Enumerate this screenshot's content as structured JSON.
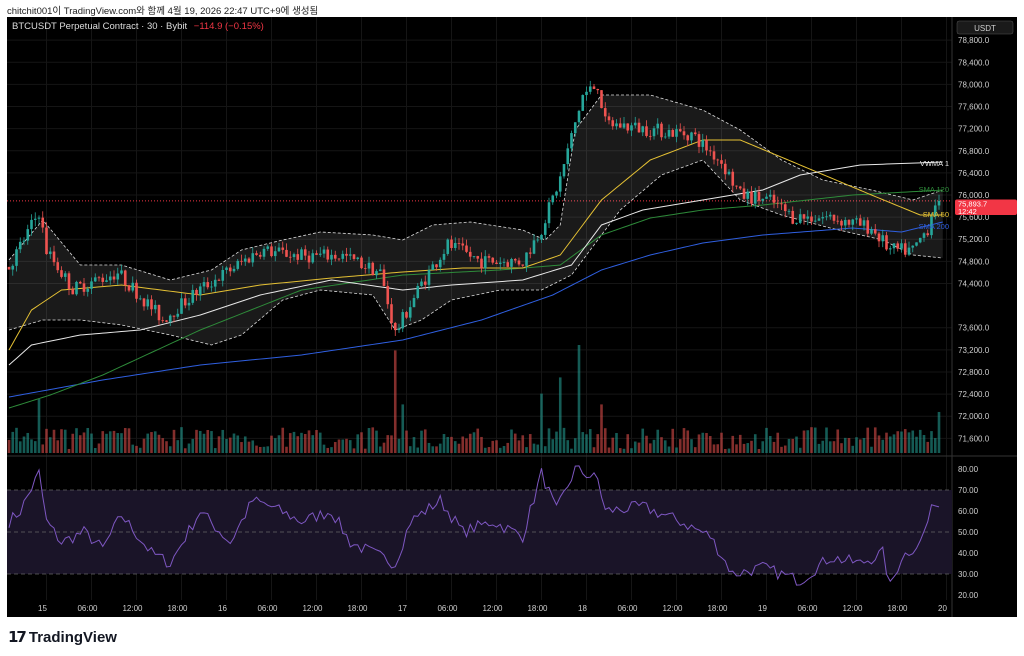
{
  "caption": "chitchit001이 TradingView.com와 함께 4월 19, 2026 22:47 UTC+9에 생성됨",
  "header": {
    "symbol": "BTCUSDT Perpetual Contract · 30 · Bybit",
    "change": "−114.9 (−0.15%)"
  },
  "currency_label": "USDT",
  "last_price": {
    "value": "75,893.7",
    "countdown": "12:42",
    "price": 75893.7
  },
  "legend": {
    "vwma": "VWMA 1",
    "sma120": "SMA 120",
    "sma50": "SMA 50",
    "sma200": "SMA 200"
  },
  "colors": {
    "up": "#26a69a",
    "down": "#ef5350",
    "sma50": "#e5c134",
    "sma120": "#2e8b3a",
    "sma200": "#2f5fe0",
    "vwma": "#e8e8e8",
    "rsi": "#7e57c2",
    "last": "#f23645"
  },
  "footer": {
    "brand": "TradingView"
  },
  "chart_data": {
    "type": "candlestick",
    "interval": "30",
    "price_axis": {
      "ticks": [
        "78,800.0",
        "78,400.0",
        "78,000.0",
        "77,600.0",
        "77,200.0",
        "76,800.0",
        "76,400.0",
        "76,000.0",
        "75,600.0",
        "75,200.0",
        "74,800.0",
        "74,400.0",
        "73,600.0",
        "73,200.0",
        "72,800.0",
        "72,400.0",
        "72,000.0",
        "71,600.0"
      ],
      "values": [
        78800,
        78400,
        78000,
        77600,
        77200,
        76800,
        76400,
        76000,
        75600,
        75200,
        74800,
        74400,
        73600,
        73200,
        72800,
        72400,
        72000,
        71600
      ]
    },
    "rsi_axis": {
      "ticks": [
        "80.00",
        "70.00",
        "60.00",
        "50.00",
        "40.00",
        "30.00",
        "20.00"
      ],
      "values": [
        80,
        70,
        60,
        50,
        40,
        30,
        20
      ]
    },
    "time_axis": {
      "labels": [
        "15",
        "06:00",
        "12:00",
        "18:00",
        "16",
        "06:00",
        "12:00",
        "18:00",
        "17",
        "06:00",
        "12:00",
        "18:00",
        "18",
        "06:00",
        "12:00",
        "18:00",
        "19",
        "06:00",
        "12:00",
        "18:00",
        "20"
      ],
      "candle_index": [
        10,
        22,
        34,
        46,
        58,
        70,
        82,
        94,
        106,
        118,
        130,
        142,
        154,
        166,
        178,
        190,
        202,
        214,
        226,
        238,
        250
      ]
    },
    "price_path": [
      [
        0,
        74700
      ],
      [
        8,
        75700
      ],
      [
        10,
        75000
      ],
      [
        17,
        74300
      ],
      [
        29,
        74600
      ],
      [
        41,
        73750
      ],
      [
        51,
        74300
      ],
      [
        67,
        75000
      ],
      [
        78,
        74900
      ],
      [
        89,
        74900
      ],
      [
        99,
        74600
      ],
      [
        103,
        73500
      ],
      [
        110,
        74400
      ],
      [
        117,
        75100
      ],
      [
        126,
        74800
      ],
      [
        137,
        74800
      ],
      [
        142,
        75400
      ],
      [
        147,
        76300
      ],
      [
        153,
        77800
      ],
      [
        157,
        78000
      ],
      [
        159,
        77300
      ],
      [
        169,
        77200
      ],
      [
        182,
        77100
      ],
      [
        190,
        76600
      ],
      [
        195,
        76000
      ],
      [
        203,
        75900
      ],
      [
        209,
        75600
      ],
      [
        219,
        75600
      ],
      [
        230,
        75400
      ],
      [
        235,
        75000
      ],
      [
        241,
        75000
      ],
      [
        245,
        75400
      ],
      [
        247,
        75893.7
      ]
    ],
    "sma200": [
      [
        0,
        72347
      ],
      [
        25,
        72655
      ],
      [
        51,
        72926
      ],
      [
        78,
        73107
      ],
      [
        105,
        73378
      ],
      [
        126,
        73740
      ],
      [
        145,
        74192
      ],
      [
        158,
        74644
      ],
      [
        171,
        74915
      ],
      [
        185,
        75132
      ],
      [
        201,
        75277
      ],
      [
        225,
        75403
      ],
      [
        238,
        75331
      ],
      [
        249,
        75512
      ]
    ],
    "sma120": [
      [
        0,
        72148
      ],
      [
        11,
        72383
      ],
      [
        25,
        72745
      ],
      [
        51,
        73559
      ],
      [
        78,
        74282
      ],
      [
        105,
        74553
      ],
      [
        131,
        74644
      ],
      [
        147,
        74734
      ],
      [
        158,
        75277
      ],
      [
        171,
        75584
      ],
      [
        185,
        75729
      ],
      [
        201,
        75819
      ],
      [
        225,
        76000
      ],
      [
        249,
        76090
      ]
    ],
    "sma50": [
      [
        0,
        73197
      ],
      [
        6,
        73920
      ],
      [
        14,
        74282
      ],
      [
        30,
        74372
      ],
      [
        51,
        74192
      ],
      [
        67,
        74372
      ],
      [
        86,
        74499
      ],
      [
        105,
        74608
      ],
      [
        121,
        74680
      ],
      [
        137,
        74680
      ],
      [
        147,
        74915
      ],
      [
        158,
        75910
      ],
      [
        171,
        76633
      ],
      [
        185,
        76995
      ],
      [
        195,
        76995
      ],
      [
        211,
        76542
      ],
      [
        230,
        76000
      ],
      [
        243,
        75638
      ],
      [
        249,
        75638
      ]
    ],
    "vwma": [
      [
        0,
        72926
      ],
      [
        6,
        73288
      ],
      [
        19,
        73468
      ],
      [
        35,
        73559
      ],
      [
        51,
        73830
      ],
      [
        67,
        74192
      ],
      [
        86,
        74463
      ],
      [
        105,
        74282
      ],
      [
        118,
        74372
      ],
      [
        137,
        74463
      ],
      [
        150,
        74734
      ],
      [
        158,
        75458
      ],
      [
        169,
        75729
      ],
      [
        185,
        75910
      ],
      [
        201,
        76090
      ],
      [
        211,
        76362
      ],
      [
        227,
        76542
      ],
      [
        249,
        76597
      ]
    ],
    "bb_upper": [
      [
        0,
        74825
      ],
      [
        9,
        75548
      ],
      [
        19,
        74734
      ],
      [
        30,
        74734
      ],
      [
        43,
        74463
      ],
      [
        54,
        74644
      ],
      [
        62,
        75006
      ],
      [
        73,
        75186
      ],
      [
        83,
        75331
      ],
      [
        97,
        75277
      ],
      [
        105,
        75186
      ],
      [
        113,
        75458
      ],
      [
        123,
        75512
      ],
      [
        137,
        75367
      ],
      [
        143,
        75186
      ],
      [
        147,
        75458
      ],
      [
        151,
        77175
      ],
      [
        158,
        77808
      ],
      [
        171,
        77808
      ],
      [
        185,
        77537
      ],
      [
        195,
        77175
      ],
      [
        206,
        76633
      ],
      [
        217,
        76271
      ],
      [
        230,
        76090
      ],
      [
        241,
        75910
      ],
      [
        249,
        76090
      ]
    ],
    "bb_lower": [
      [
        0,
        73559
      ],
      [
        9,
        73740
      ],
      [
        19,
        73740
      ],
      [
        30,
        73650
      ],
      [
        43,
        73469
      ],
      [
        54,
        73288
      ],
      [
        62,
        73469
      ],
      [
        73,
        74102
      ],
      [
        83,
        74282
      ],
      [
        97,
        74192
      ],
      [
        103,
        73559
      ],
      [
        110,
        73740
      ],
      [
        118,
        74102
      ],
      [
        131,
        74282
      ],
      [
        142,
        74282
      ],
      [
        150,
        74554
      ],
      [
        155,
        75006
      ],
      [
        163,
        75729
      ],
      [
        174,
        76362
      ],
      [
        185,
        76633
      ],
      [
        195,
        75910
      ],
      [
        206,
        75638
      ],
      [
        219,
        75403
      ],
      [
        233,
        75186
      ],
      [
        241,
        74915
      ],
      [
        249,
        74860
      ]
    ],
    "rsi": [
      [
        0,
        55
      ],
      [
        3,
        60
      ],
      [
        8,
        78
      ],
      [
        10,
        55
      ],
      [
        14,
        45
      ],
      [
        20,
        50
      ],
      [
        25,
        42
      ],
      [
        30,
        58
      ],
      [
        38,
        40
      ],
      [
        43,
        35
      ],
      [
        51,
        60
      ],
      [
        59,
        45
      ],
      [
        65,
        65
      ],
      [
        70,
        62
      ],
      [
        78,
        55
      ],
      [
        86,
        60
      ],
      [
        91,
        45
      ],
      [
        97,
        40
      ],
      [
        103,
        35
      ],
      [
        107,
        55
      ],
      [
        115,
        65
      ],
      [
        121,
        50
      ],
      [
        129,
        55
      ],
      [
        137,
        48
      ],
      [
        142,
        78
      ],
      [
        146,
        60
      ],
      [
        151,
        80
      ],
      [
        157,
        75
      ],
      [
        159,
        60
      ],
      [
        169,
        62
      ],
      [
        179,
        55
      ],
      [
        187,
        48
      ],
      [
        193,
        30
      ],
      [
        201,
        33
      ],
      [
        209,
        28
      ],
      [
        211,
        27
      ],
      [
        219,
        38
      ],
      [
        227,
        35
      ],
      [
        233,
        40
      ],
      [
        235,
        24
      ],
      [
        238,
        38
      ],
      [
        243,
        45
      ],
      [
        247,
        65
      ],
      [
        249,
        60
      ]
    ],
    "volume_spikes": [
      [
        103,
        0.95
      ],
      [
        152,
        1.0
      ],
      [
        142,
        0.55
      ],
      [
        147,
        0.7
      ],
      [
        248,
        0.38
      ],
      [
        105,
        0.45
      ],
      [
        8,
        0.5
      ],
      [
        158,
        0.45
      ]
    ]
  }
}
